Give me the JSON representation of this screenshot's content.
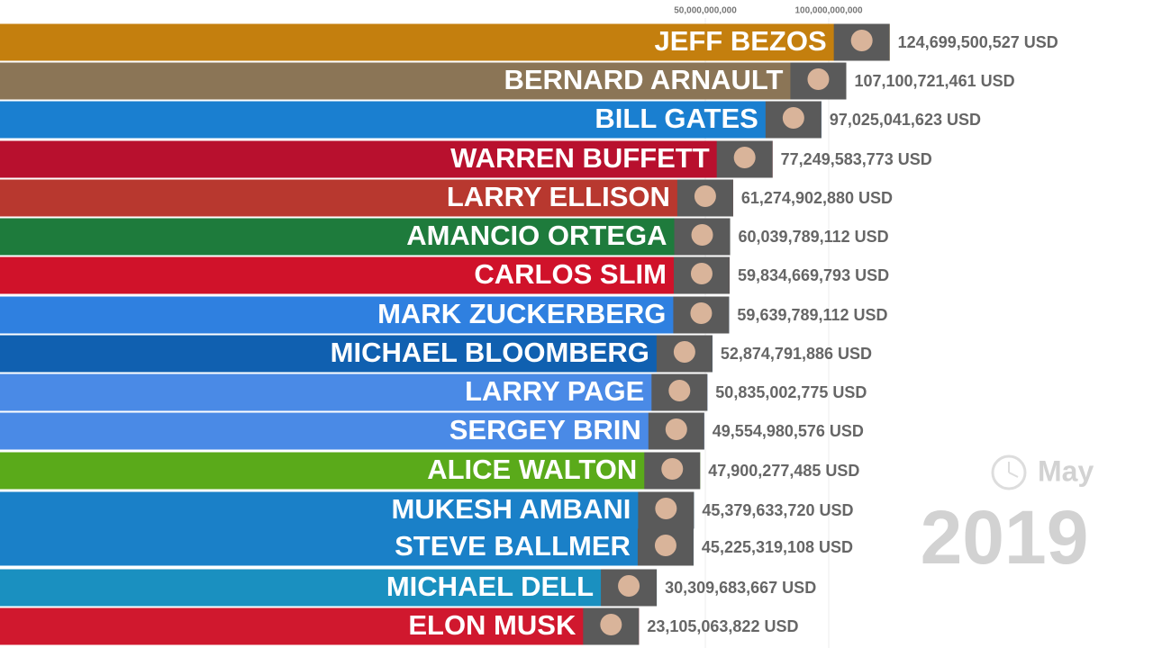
{
  "chart_data": {
    "type": "bar",
    "orientation": "horizontal",
    "categories": [
      "JEFF BEZOS",
      "BERNARD ARNAULT",
      "BILL GATES",
      "WARREN BUFFETT",
      "LARRY ELLISON",
      "AMANCIO ORTEGA",
      "CARLOS SLIM",
      "MARK ZUCKERBERG",
      "MICHAEL BLOOMBERG",
      "LARRY PAGE",
      "SERGEY BRIN",
      "ALICE WALTON",
      "MUKESH AMBANI",
      "STEVE BALLMER",
      "MICHAEL DELL",
      "ELON MUSK"
    ],
    "values": [
      124699500527,
      107100721461,
      97025041623,
      77249583773,
      61274902880,
      60039789112,
      59834669793,
      59639789112,
      52874791886,
      50835002775,
      49554980576,
      47900277485,
      45379633720,
      45225319108,
      30309683667,
      23105063822
    ],
    "value_labels": [
      "124,699,500,527 USD",
      "107,100,721,461 USD",
      "97,025,041,623 USD",
      "77,249,583,773 USD",
      "61,274,902,880 USD",
      "60,039,789,112 USD",
      "59,834,669,793 USD",
      "59,639,789,112 USD",
      "52,874,791,886 USD",
      "50,835,002,775 USD",
      "49,554,980,576 USD",
      "47,900,277,485 USD",
      "45,379,633,720 USD",
      "45,225,319,108 USD",
      "30,309,683,667 USD",
      "23,105,063,822 USD"
    ],
    "colors": [
      "#c47f0e",
      "#8b7556",
      "#1a7fd0",
      "#b8102e",
      "#b8382f",
      "#1e7b3c",
      "#d0122a",
      "#2f80e0",
      "#1060b0",
      "#4a8ae6",
      "#4a8ae6",
      "#5aaa1a",
      "#1a80c8",
      "#1a80c8",
      "#1a90c0",
      "#d0182e"
    ],
    "xlim": [
      -235800000000,
      231400000000
    ],
    "xticks": [
      {
        "value": 50000000000,
        "label": "50,000,000,000"
      },
      {
        "value": 100000000000,
        "label": "100,000,000,000"
      }
    ],
    "grid": true,
    "period_month": "May",
    "period_year": "2019"
  }
}
